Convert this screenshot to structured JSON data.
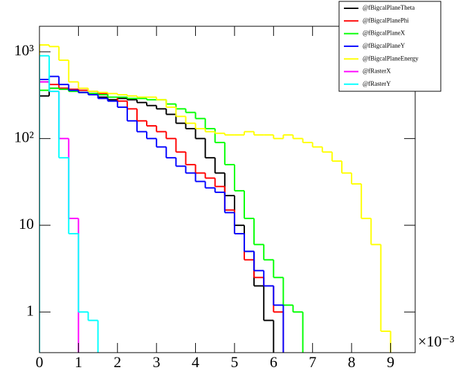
{
  "chart_data": {
    "type": "histogram",
    "log_y": true,
    "bins": [
      0,
      0.25,
      0.5,
      0.75,
      1,
      1.25,
      1.5,
      1.75,
      2,
      2.25,
      2.5,
      2.75,
      3,
      3.25,
      3.5,
      3.75,
      4,
      4.25,
      4.5,
      4.75,
      5,
      5.25,
      5.5,
      5.75,
      6,
      6.25,
      6.5,
      6.75,
      7,
      7.25,
      7.5,
      7.75,
      8,
      8.25,
      8.5,
      8.75,
      9,
      9.25,
      9.5
    ],
    "xlim": [
      0,
      9.63
    ],
    "xticks": [
      0,
      1,
      2,
      3,
      4,
      5,
      6,
      7,
      8,
      9
    ],
    "x_multiplier": "×10⁻³",
    "ylim": [
      0.34,
      1970
    ],
    "yticks": [
      {
        "value": 1,
        "label": "1"
      },
      {
        "value": 10,
        "label": "10"
      },
      {
        "value": 100,
        "label": "10²"
      },
      {
        "value": 1000,
        "label": "10³"
      }
    ],
    "legend_position": "top-right",
    "series": [
      {
        "name": "@fBigcalPlaneTheta",
        "color": "#000000",
        "values": [
          310,
          380,
          380,
          360,
          340,
          330,
          300,
          280,
          290,
          280,
          260,
          240,
          220,
          190,
          150,
          130,
          100,
          60,
          40,
          22,
          10,
          5,
          2,
          0.8,
          null,
          null,
          null,
          null,
          null,
          null,
          null,
          null,
          null,
          null,
          null,
          null,
          null,
          null
        ]
      },
      {
        "name": "@fBigcalPlanePhi",
        "color": "#ff0000",
        "values": [
          450,
          420,
          380,
          370,
          360,
          350,
          330,
          300,
          270,
          220,
          160,
          140,
          120,
          100,
          70,
          50,
          40,
          35,
          28,
          15,
          8,
          4,
          2.5,
          2,
          1,
          null,
          null,
          null,
          null,
          null,
          null,
          null,
          null,
          null,
          null,
          null,
          null,
          null
        ]
      },
      {
        "name": "@fBigcalPlaneX",
        "color": "#00ff00",
        "values": [
          360,
          380,
          370,
          350,
          340,
          330,
          320,
          300,
          300,
          290,
          290,
          280,
          280,
          250,
          220,
          200,
          170,
          130,
          90,
          50,
          25,
          12,
          6,
          4,
          2.5,
          1.2,
          1,
          null,
          null,
          null,
          null,
          null,
          null,
          null,
          null,
          null,
          null,
          null
        ]
      },
      {
        "name": "@fBigcalPlaneY",
        "color": "#0000ff",
        "values": [
          480,
          520,
          420,
          360,
          340,
          320,
          290,
          270,
          230,
          160,
          120,
          100,
          80,
          60,
          48,
          40,
          32,
          27,
          24,
          14,
          8,
          5,
          3,
          2,
          1.2,
          null,
          null,
          null,
          null,
          null,
          null,
          null,
          null,
          null,
          null,
          null,
          null,
          null
        ]
      },
      {
        "name": "@fBigcalPlaneEnergy",
        "color": "#ffff00",
        "values": [
          1200,
          1150,
          800,
          450,
          380,
          350,
          340,
          330,
          320,
          310,
          300,
          300,
          280,
          230,
          180,
          150,
          130,
          120,
          115,
          110,
          110,
          120,
          110,
          110,
          100,
          110,
          100,
          90,
          80,
          70,
          55,
          40,
          30,
          12,
          6,
          0.6,
          null,
          null
        ]
      },
      {
        "name": "@fRasterX",
        "color": "#ff00ff",
        "values": [
          450,
          350,
          100,
          12,
          null,
          null,
          null,
          null,
          null,
          null,
          null,
          null,
          null,
          null,
          null,
          null,
          null,
          null,
          null,
          null,
          null,
          null,
          null,
          null,
          null,
          null,
          null,
          null,
          null,
          null,
          null,
          null,
          null,
          null,
          null,
          null,
          null,
          null
        ]
      },
      {
        "name": "@fRasterY",
        "color": "#00ffff",
        "values": [
          900,
          350,
          60,
          8,
          1,
          0.8,
          null,
          null,
          null,
          null,
          null,
          null,
          null,
          null,
          null,
          null,
          null,
          null,
          null,
          null,
          null,
          null,
          null,
          null,
          null,
          null,
          null,
          null,
          null,
          null,
          null,
          null,
          null,
          null,
          null,
          null,
          null,
          null
        ]
      }
    ]
  }
}
